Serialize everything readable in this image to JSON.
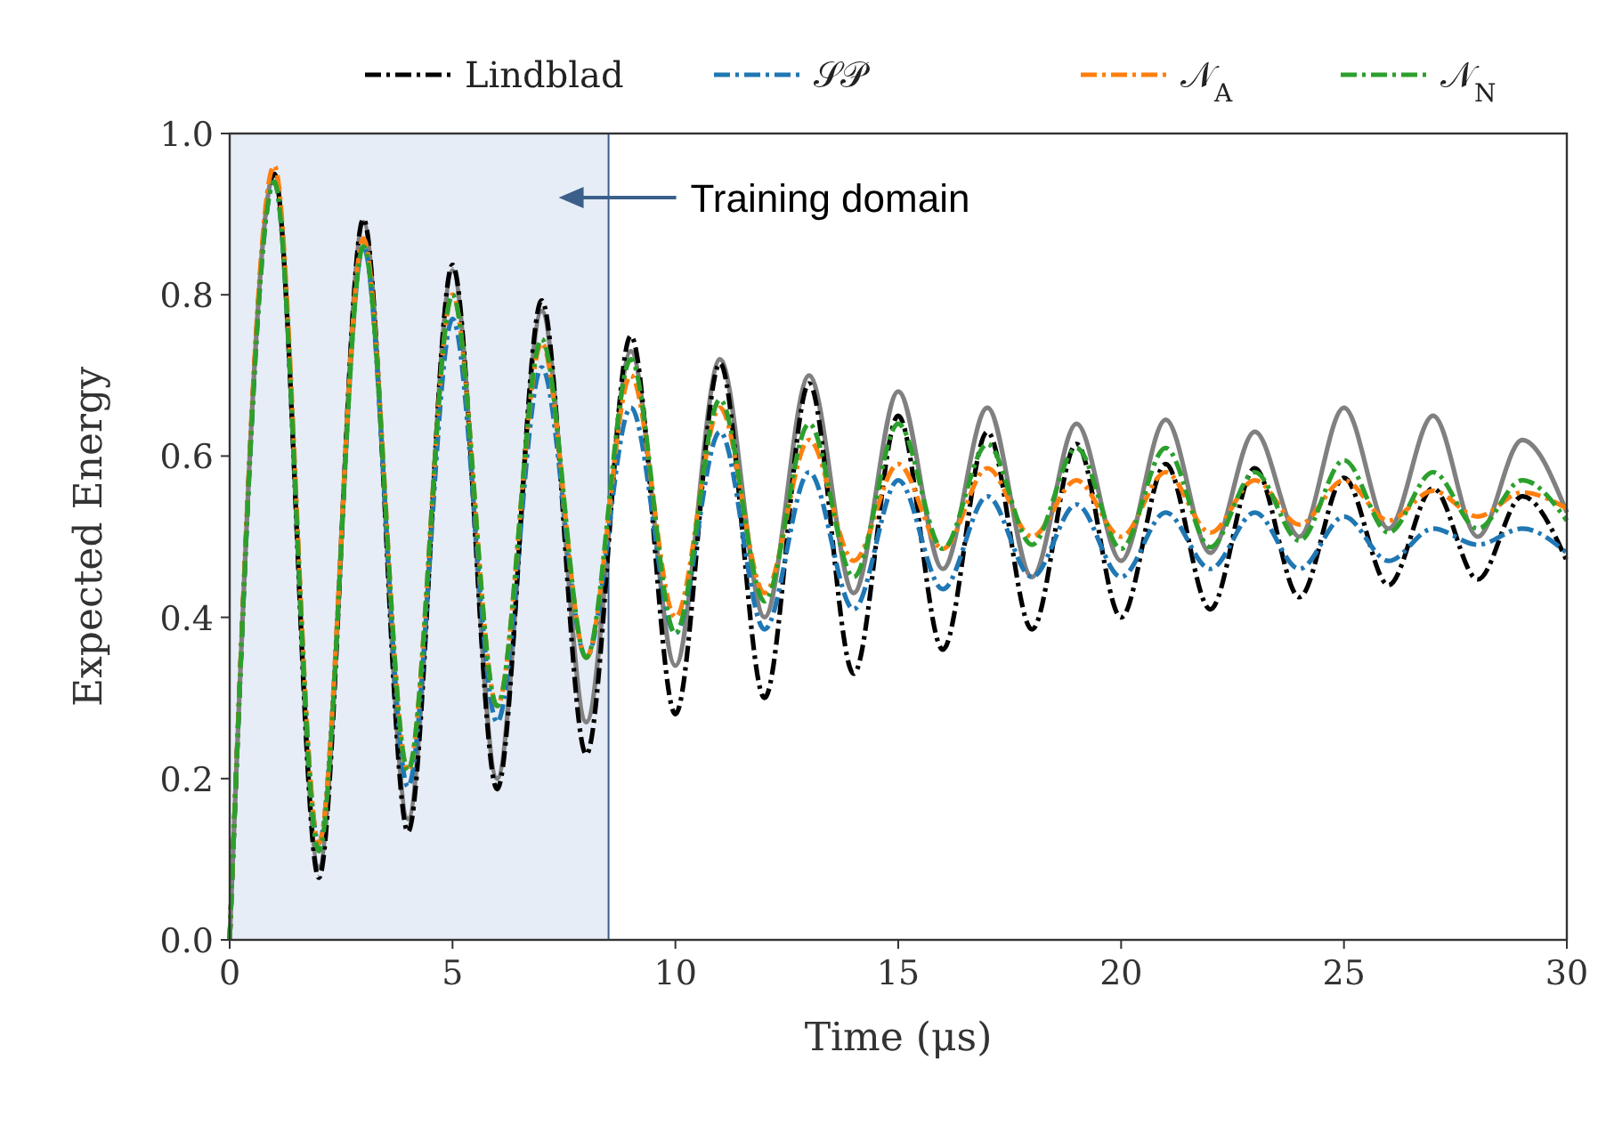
{
  "chart_data": {
    "type": "line",
    "xlabel": "Time (μs)",
    "ylabel": "Expected Energy",
    "x": [
      0,
      1,
      2,
      3,
      4,
      5,
      6,
      7,
      8,
      9,
      10,
      11,
      12,
      13,
      14,
      15,
      16,
      17,
      18,
      19,
      20,
      21,
      22,
      23,
      24,
      25,
      26,
      27,
      28,
      29,
      30
    ],
    "series": [
      {
        "color": "#808080",
        "line_style": "solid",
        "values": [
          0,
          0.95,
          0.09,
          0.89,
          0.15,
          0.83,
          0.2,
          0.78,
          0.27,
          0.73,
          0.34,
          0.72,
          0.4,
          0.7,
          0.43,
          0.68,
          0.46,
          0.66,
          0.45,
          0.64,
          0.47,
          0.645,
          0.48,
          0.63,
          0.5,
          0.66,
          0.51,
          0.65,
          0.5,
          0.62,
          0.53
        ]
      },
      {
        "name": "Lindblad",
        "color": "#000000",
        "line_style": "dashed",
        "values": [
          0,
          0.95,
          0.077,
          0.894,
          0.134,
          0.837,
          0.187,
          0.793,
          0.23,
          0.749,
          0.28,
          0.715,
          0.3,
          0.69,
          0.33,
          0.65,
          0.36,
          0.63,
          0.385,
          0.615,
          0.4,
          0.59,
          0.41,
          0.585,
          0.425,
          0.573,
          0.44,
          0.56,
          0.447,
          0.55,
          0.47
        ]
      },
      {
        "name": "𝒮𝒫",
        "color": "#1f77b4",
        "line_style": "dashed",
        "values": [
          0,
          0.94,
          0.12,
          0.86,
          0.19,
          0.77,
          0.27,
          0.71,
          0.35,
          0.66,
          0.38,
          0.63,
          0.385,
          0.58,
          0.41,
          0.57,
          0.435,
          0.55,
          0.45,
          0.54,
          0.45,
          0.53,
          0.46,
          0.53,
          0.46,
          0.525,
          0.47,
          0.51,
          0.49,
          0.51,
          0.48
        ]
      },
      {
        "name": "𝒩$_{A}$",
        "color": "#ff7f0e",
        "line_style": "dashed",
        "values": [
          0,
          0.96,
          0.12,
          0.87,
          0.21,
          0.8,
          0.29,
          0.74,
          0.35,
          0.7,
          0.4,
          0.66,
          0.43,
          0.62,
          0.47,
          0.59,
          0.485,
          0.585,
          0.5,
          0.57,
          0.5,
          0.58,
          0.505,
          0.57,
          0.515,
          0.57,
          0.52,
          0.557,
          0.525,
          0.555,
          0.535
        ]
      },
      {
        "name": "𝒩$_{N}$",
        "color": "#2ca02c",
        "line_style": "dashed",
        "values": [
          0,
          0.94,
          0.11,
          0.86,
          0.21,
          0.8,
          0.29,
          0.745,
          0.35,
          0.72,
          0.38,
          0.67,
          0.42,
          0.64,
          0.45,
          0.64,
          0.485,
          0.615,
          0.49,
          0.61,
          0.485,
          0.61,
          0.487,
          0.58,
          0.495,
          0.595,
          0.505,
          0.58,
          0.51,
          0.57,
          0.52
        ]
      }
    ],
    "xlim": [
      0,
      30
    ],
    "xticks": [
      0,
      5,
      10,
      15,
      20,
      25,
      30
    ],
    "ylim": [
      0,
      1
    ],
    "yticks": [
      {
        "value": 0,
        "label": "0.0"
      },
      {
        "value": 0.2,
        "label": "0.2"
      },
      {
        "value": 0.4,
        "label": "0.4"
      },
      {
        "value": 0.6,
        "label": "0.6"
      },
      {
        "value": 0.8,
        "label": "0.8"
      },
      {
        "value": 1,
        "label": "1.0"
      }
    ],
    "bands": [
      {
        "axis": "x",
        "from": 0,
        "to": 8.5,
        "label": "Training domain",
        "color": "#e6edf6"
      }
    ],
    "grid": false,
    "legend": "top"
  }
}
